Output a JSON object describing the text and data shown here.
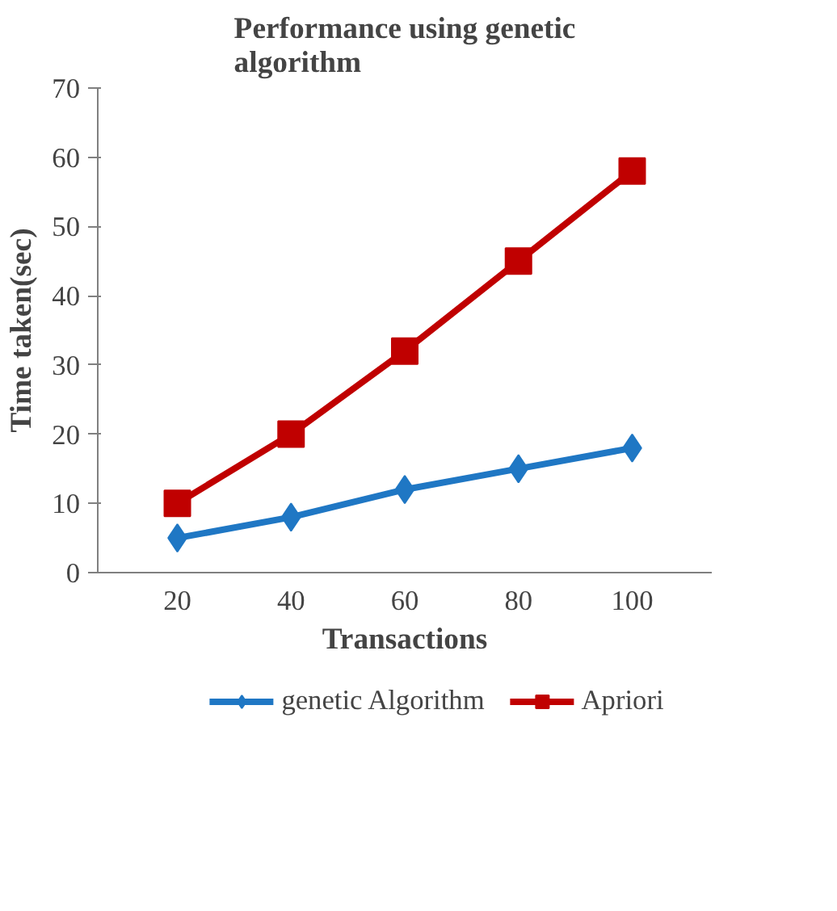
{
  "chart_data": {
    "type": "line",
    "title": "Performance using genetic algorithm",
    "xlabel": "Transactions",
    "ylabel": "Time taken(sec)",
    "categories": [
      "20",
      "40",
      "60",
      "80",
      "100"
    ],
    "series": [
      {
        "name": "genetic Algorithm",
        "color": "#1f77c4",
        "values": [
          5,
          8,
          12,
          15,
          18
        ],
        "marker": "diamond"
      },
      {
        "name": "Apriori",
        "color": "#c00000",
        "values": [
          10,
          20,
          32,
          45,
          58
        ],
        "marker": "square"
      }
    ],
    "ylim": [
      0,
      70
    ],
    "yticks": [
      0,
      10,
      20,
      30,
      40,
      50,
      60,
      70
    ],
    "grid": false,
    "legend": "bottom",
    "line_style": "solid"
  }
}
